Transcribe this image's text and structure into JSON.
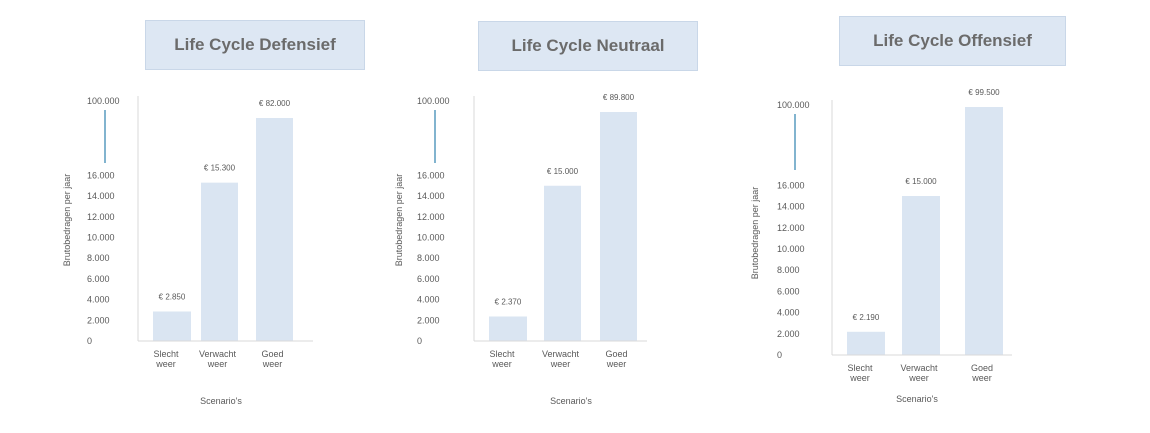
{
  "chart_data": [
    {
      "type": "bar",
      "title": "Life Cycle Defensief",
      "ylabel": "Brutobedragen per jaar",
      "xlabel": "Scenario's",
      "categories": [
        [
          "Slecht",
          "weer"
        ],
        [
          "Verwacht",
          "weer"
        ],
        [
          "Goed",
          "weer"
        ]
      ],
      "values": [
        2850,
        15300,
        82000
      ],
      "data_labels": [
        "€ 2.850",
        "€ 15.300",
        "€ 82.000"
      ],
      "y_ticks": [
        "0",
        "2.000",
        "4.000",
        "6.000",
        "8.000",
        "10.000",
        "12.000",
        "14.000",
        "16.000"
      ],
      "y_top_tick": "100.000",
      "ylim": [
        0,
        16000
      ],
      "axis_break": true,
      "grid": false,
      "bar_color": "#dae5f2",
      "break_line_color": "#3f8cb5"
    },
    {
      "type": "bar",
      "title": "Life Cycle Neutraal",
      "ylabel": "Brutobedragen per jaar",
      "xlabel": "Scenario's",
      "categories": [
        [
          "Slecht",
          "weer"
        ],
        [
          "Verwacht",
          "weer"
        ],
        [
          "Goed",
          "weer"
        ]
      ],
      "values": [
        2370,
        15000,
        89800
      ],
      "data_labels": [
        "€ 2.370",
        "€ 15.000",
        "€ 89.800"
      ],
      "y_ticks": [
        "0",
        "2.000",
        "4.000",
        "6.000",
        "8.000",
        "10.000",
        "12.000",
        "14.000",
        "16.000"
      ],
      "y_top_tick": "100.000",
      "ylim": [
        0,
        16000
      ],
      "axis_break": true,
      "grid": false,
      "bar_color": "#dae5f2",
      "break_line_color": "#3f8cb5"
    },
    {
      "type": "bar",
      "title": "Life Cycle Offensief",
      "ylabel": "Brutobedragen per jaar",
      "xlabel": "Scenario's",
      "categories": [
        [
          "Slecht",
          "weer"
        ],
        [
          "Verwacht",
          "weer"
        ],
        [
          "Goed",
          "weer"
        ]
      ],
      "values": [
        2190,
        15000,
        99500
      ],
      "data_labels": [
        "€ 2.190",
        "€ 15.000",
        "€ 99.500"
      ],
      "y_ticks": [
        "0",
        "2.000",
        "4.000",
        "6.000",
        "8.000",
        "10.000",
        "12.000",
        "14.000",
        "16.000"
      ],
      "y_top_tick": "100.000",
      "ylim": [
        0,
        16000
      ],
      "axis_break": true,
      "grid": false,
      "bar_color": "#dae5f2",
      "break_line_color": "#3f8cb5"
    }
  ]
}
